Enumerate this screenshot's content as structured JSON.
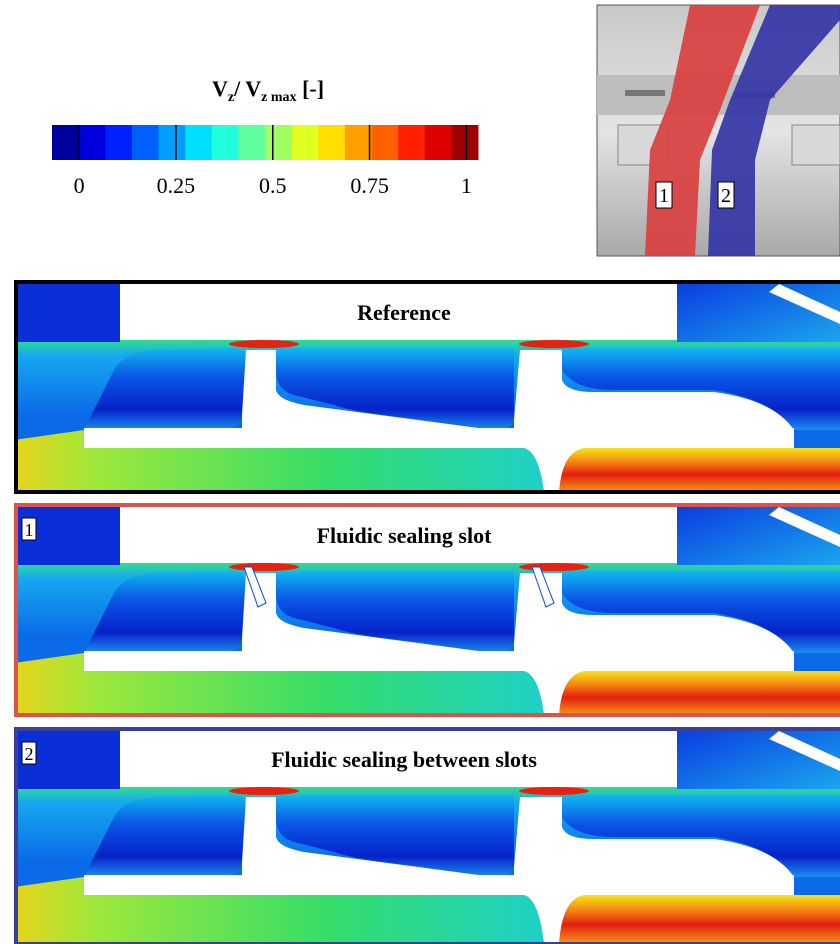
{
  "colorbar": {
    "title": {
      "parts": [
        "V",
        "z",
        "/ V",
        "z max",
        " [-]"
      ]
    },
    "lim": [
      -0.07,
      1.03
    ],
    "ticks": [
      0,
      0.25,
      0.5,
      0.75,
      1
    ]
  },
  "inset": {
    "labels": [
      "1",
      "2"
    ]
  },
  "panels": [
    {
      "title": "Reference",
      "border_color": "#000000"
    },
    {
      "label": "1",
      "title": "Fluidic sealing slot",
      "border_color": "#d9534f"
    },
    {
      "label": "2",
      "title": "Fluidic sealing between slots",
      "border_color": "#3b3f95"
    }
  ]
}
